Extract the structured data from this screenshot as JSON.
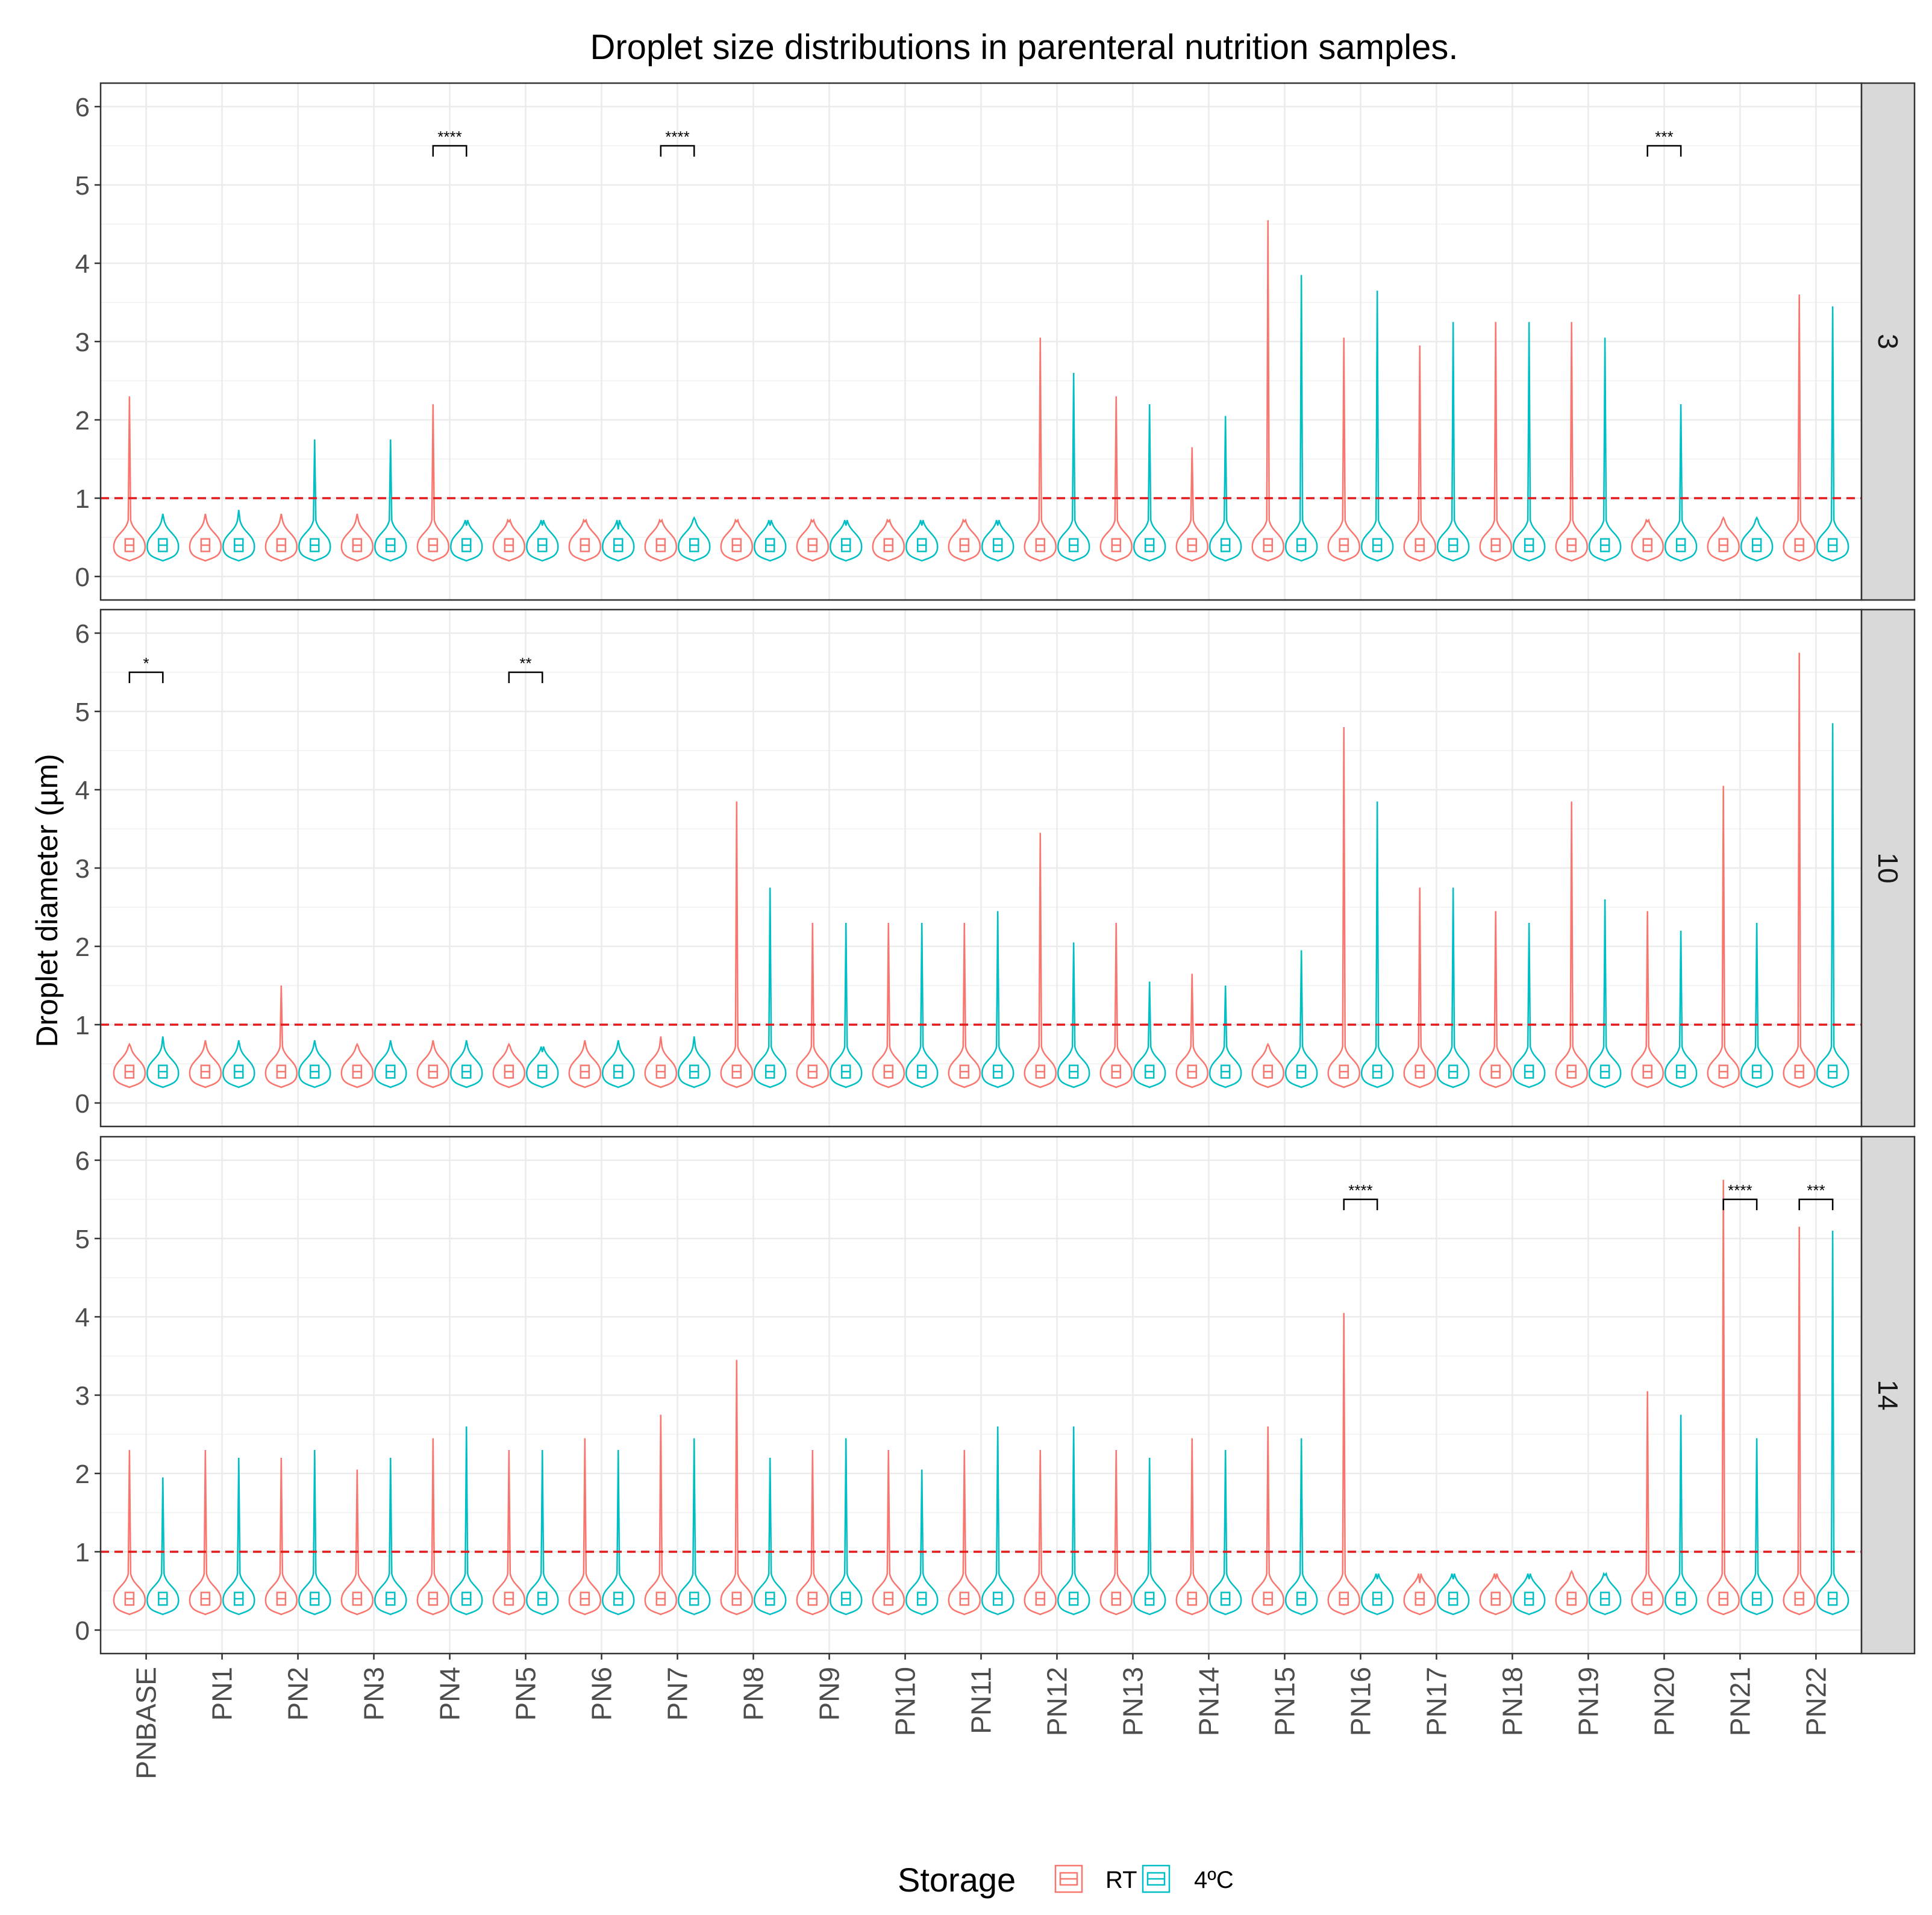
{
  "chart_data": {
    "type": "violin",
    "title": "Droplet size distributions in parenteral nutrition samples.",
    "ylabel": "Droplet diameter (µm)",
    "xlabel": "",
    "ylim": [
      -0.3,
      6.3
    ],
    "yticks": [
      0,
      1,
      2,
      3,
      4,
      5,
      6
    ],
    "reference_line": 1,
    "categories": [
      "PNBASE",
      "PN1",
      "PN2",
      "PN3",
      "PN4",
      "PN5",
      "PN6",
      "PN7",
      "PN8",
      "PN9",
      "PN10",
      "PN11",
      "PN12",
      "PN13",
      "PN14",
      "PN15",
      "PN16",
      "PN17",
      "PN18",
      "PN19",
      "PN20",
      "PN21",
      "PN22"
    ],
    "legend": {
      "title": "Storage",
      "placement": "bottom",
      "entries": [
        {
          "name": "RT",
          "color": "#F8766D"
        },
        {
          "name": "4ºC",
          "color": "#00BFC4"
        }
      ]
    },
    "panels": [
      {
        "label": "3",
        "series": [
          {
            "name": "RT",
            "max": [
              2.3,
              0.8,
              0.8,
              0.8,
              2.2,
              0.7,
              0.7,
              0.7,
              0.7,
              0.7,
              0.7,
              0.7,
              3.05,
              2.3,
              1.65,
              4.55,
              3.05,
              2.95,
              3.25,
              3.25,
              0.7,
              0.75,
              3.6
            ]
          },
          {
            "name": "4ºC",
            "max": [
              0.8,
              0.85,
              1.75,
              1.75,
              0.65,
              0.65,
              0.6,
              0.75,
              0.65,
              0.65,
              0.65,
              0.65,
              2.6,
              2.2,
              2.05,
              3.85,
              3.65,
              3.25,
              3.25,
              3.05,
              2.2,
              0.75,
              3.45
            ]
          }
        ],
        "annotations": [
          {
            "category": "PN4",
            "label": "****"
          },
          {
            "category": "PN7",
            "label": "****"
          },
          {
            "category": "PN20",
            "label": "***"
          }
        ]
      },
      {
        "label": "10",
        "series": [
          {
            "name": "RT",
            "max": [
              0.75,
              0.8,
              1.5,
              0.75,
              0.8,
              0.75,
              0.8,
              0.85,
              3.85,
              2.3,
              2.3,
              2.3,
              3.45,
              2.3,
              1.65,
              0.75,
              4.8,
              2.75,
              2.45,
              3.85,
              2.45,
              4.05,
              5.75
            ]
          },
          {
            "name": "4ºC",
            "max": [
              0.85,
              0.8,
              0.8,
              0.8,
              0.8,
              0.65,
              0.8,
              0.85,
              2.75,
              2.3,
              2.3,
              2.45,
              2.05,
              1.55,
              1.5,
              1.95,
              3.85,
              2.75,
              2.3,
              2.6,
              2.2,
              2.3,
              4.85
            ]
          }
        ],
        "annotations": [
          {
            "category": "PNBASE",
            "label": "*"
          },
          {
            "category": "PN5",
            "label": "**"
          }
        ]
      },
      {
        "label": "14",
        "series": [
          {
            "name": "RT",
            "max": [
              2.3,
              2.3,
              2.2,
              2.05,
              2.45,
              2.3,
              2.45,
              2.75,
              3.45,
              2.3,
              2.3,
              2.3,
              2.3,
              2.3,
              2.45,
              2.6,
              4.05,
              0.6,
              0.65,
              0.75,
              3.05,
              5.75,
              5.15
            ]
          },
          {
            "name": "4ºC",
            "max": [
              1.95,
              2.2,
              2.3,
              2.2,
              2.6,
              2.3,
              2.3,
              2.45,
              2.2,
              2.45,
              2.05,
              2.6,
              2.6,
              2.2,
              2.3,
              2.45,
              0.65,
              0.65,
              0.65,
              0.7,
              2.75,
              2.45,
              5.1
            ]
          }
        ],
        "annotations": [
          {
            "category": "PN16",
            "label": "****"
          },
          {
            "category": "PN21",
            "label": "****"
          },
          {
            "category": "PN22",
            "label": "***"
          }
        ]
      }
    ]
  }
}
